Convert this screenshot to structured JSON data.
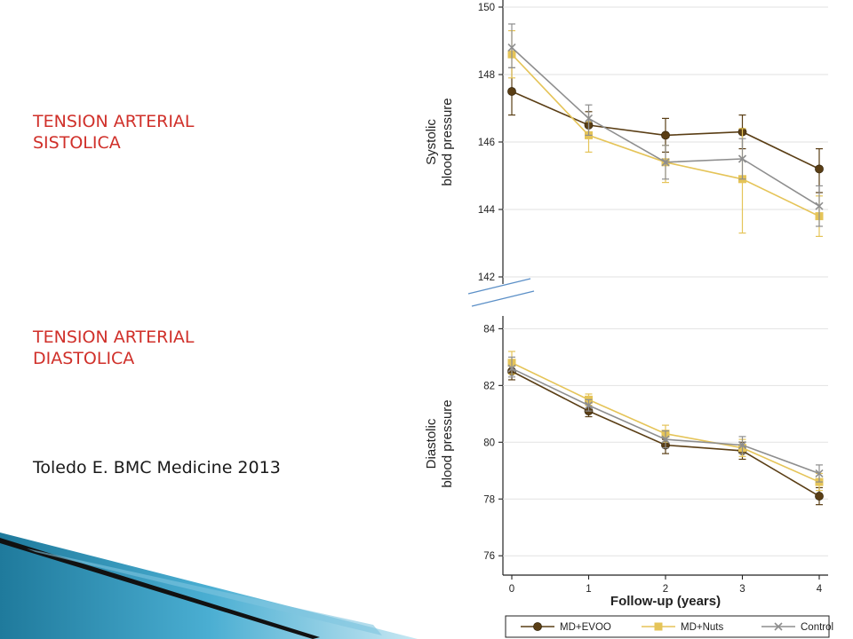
{
  "slide": {
    "systolic_label": "TENSION ARTERIAL\nSISTOLICA",
    "diastolic_label": "TENSION ARTERIAL\nDIASTOLICA",
    "citation": "Toledo E. BMC Medicine 2013"
  },
  "colors": {
    "label_red": "#d0302a",
    "evoo": "#5a3e15",
    "nuts": "#e5c458",
    "control": "#8e8e8e"
  },
  "chart_data": [
    {
      "type": "line",
      "ylabel": "Systolic\nblood pressure",
      "xlabel": "",
      "x": [
        0,
        1,
        2,
        3,
        4
      ],
      "ylim": [
        142,
        150
      ],
      "yticks": [
        142,
        144,
        146,
        148,
        150
      ],
      "series": [
        {
          "name": "MD+EVOO",
          "marker": "circle",
          "values": [
            147.5,
            146.5,
            146.2,
            146.3,
            145.2
          ],
          "err_low": [
            146.8,
            146.2,
            145.7,
            145.8,
            144.5
          ],
          "err_high": [
            148.2,
            146.9,
            146.7,
            146.8,
            145.8
          ]
        },
        {
          "name": "MD+Nuts",
          "marker": "square",
          "values": [
            148.6,
            146.2,
            145.4,
            144.9,
            143.8
          ],
          "err_low": [
            147.9,
            145.7,
            144.8,
            143.3,
            143.2
          ],
          "err_high": [
            149.3,
            146.6,
            145.9,
            146.4,
            144.4
          ]
        },
        {
          "name": "Control",
          "marker": "x",
          "values": [
            148.8,
            146.7,
            145.4,
            145.5,
            144.1
          ],
          "err_low": [
            148.2,
            146.2,
            144.9,
            144.9,
            143.5
          ],
          "err_high": [
            149.5,
            147.1,
            145.9,
            146.1,
            144.7
          ]
        }
      ]
    },
    {
      "type": "line",
      "ylabel": "Diastolic\nblood pressure",
      "xlabel": "Follow-up (years)",
      "x": [
        0,
        1,
        2,
        3,
        4
      ],
      "ylim": [
        75.6,
        84.2
      ],
      "yticks": [
        76,
        78,
        80,
        82,
        84
      ],
      "series": [
        {
          "name": "MD+EVOO",
          "marker": "circle",
          "values": [
            82.5,
            81.1,
            79.9,
            79.7,
            78.1
          ],
          "err_low": [
            82.2,
            80.9,
            79.6,
            79.4,
            77.8
          ],
          "err_high": [
            82.8,
            81.3,
            80.1,
            80.0,
            78.4
          ]
        },
        {
          "name": "MD+Nuts",
          "marker": "square",
          "values": [
            82.8,
            81.5,
            80.3,
            79.8,
            78.6
          ],
          "err_low": [
            82.4,
            81.3,
            80.0,
            79.5,
            78.3
          ],
          "err_high": [
            83.2,
            81.7,
            80.6,
            80.1,
            78.9
          ]
        },
        {
          "name": "Control",
          "marker": "x",
          "values": [
            82.6,
            81.3,
            80.1,
            79.9,
            78.9
          ],
          "err_low": [
            82.3,
            81.1,
            79.8,
            79.6,
            78.6
          ],
          "err_high": [
            83.0,
            81.5,
            80.4,
            80.2,
            79.2
          ]
        }
      ]
    }
  ],
  "legend": {
    "items": [
      "MD+EVOO",
      "MD+Nuts",
      "Control"
    ],
    "placement": "bottom"
  }
}
